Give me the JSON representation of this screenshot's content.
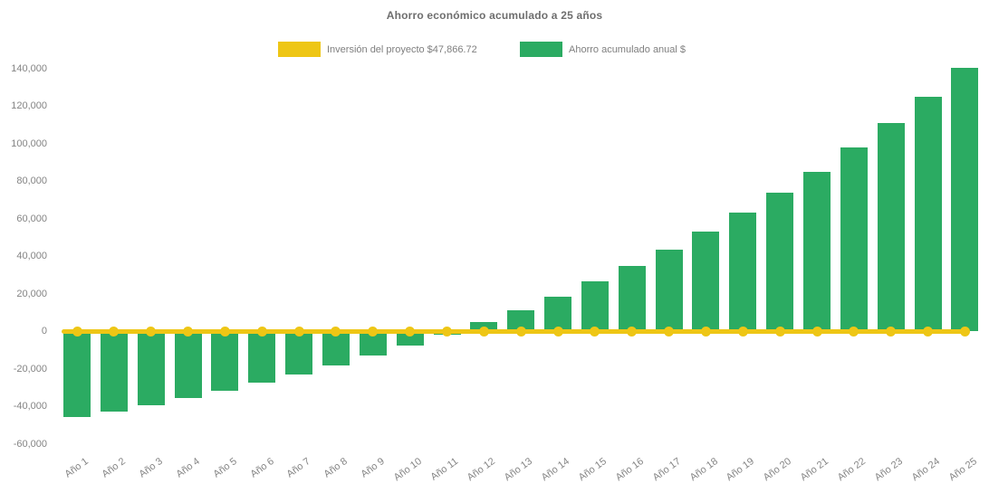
{
  "title": "Ahorro económico acumulado a 25 años",
  "legend": {
    "items": [
      {
        "label": "Inversión del proyecto $47,866.72",
        "color": "#eec615",
        "marker": "line"
      },
      {
        "label": "Ahorro acumulado anual $",
        "color": "#2bab62",
        "marker": "bar"
      }
    ]
  },
  "colors": {
    "bar_green": "#2bab62",
    "line_yellow": "#eec615",
    "axis_text_gray": "#848484",
    "title_gray": "#6e6e6e",
    "background": "#ffffff"
  },
  "chart_data": {
    "type": "bar",
    "title": "Ahorro económico acumulado a 25 años",
    "categories": [
      "Año 1",
      "Año 2",
      "Año 3",
      "Año 4",
      "Año 5",
      "Año 6",
      "Año 7",
      "Año 8",
      "Año 9",
      "Año 10",
      "Año 11",
      "Año 12",
      "Año 13",
      "Año 14",
      "Año 15",
      "Año 16",
      "Año 17",
      "Año 18",
      "Año 19",
      "Año 20",
      "Año 21",
      "Año 22",
      "Año 23",
      "Año 24",
      "Año 25"
    ],
    "series": [
      {
        "name": "Ahorro acumulado anual $",
        "type": "bar",
        "color": "#2bab62",
        "values": [
          -46000,
          -43000,
          -39300,
          -35500,
          -31800,
          -27500,
          -23000,
          -18100,
          -12900,
          -7600,
          -2000,
          4800,
          11300,
          18300,
          26400,
          34500,
          43500,
          52900,
          63000,
          73900,
          85000,
          97600,
          110700,
          124900,
          140300
        ]
      },
      {
        "name": "Inversión del proyecto $47,866.72",
        "type": "line",
        "color": "#eec615",
        "values": [
          0,
          0,
          0,
          0,
          0,
          0,
          0,
          0,
          0,
          0,
          0,
          0,
          0,
          0,
          0,
          0,
          0,
          0,
          0,
          0,
          0,
          0,
          0,
          0,
          0
        ]
      }
    ],
    "project_investment": 47866.72,
    "xlabel": "",
    "ylabel": "",
    "ylim": [
      -60000,
      140000
    ],
    "ytick_step": 20000,
    "ytick_labels": [
      "140,000",
      "120,000",
      "100,000",
      "80,000",
      "60,000",
      "40,000",
      "20,000",
      "0",
      "-20,000",
      "-40,000",
      "-60,000"
    ],
    "grid": false,
    "legend_position": "top"
  }
}
